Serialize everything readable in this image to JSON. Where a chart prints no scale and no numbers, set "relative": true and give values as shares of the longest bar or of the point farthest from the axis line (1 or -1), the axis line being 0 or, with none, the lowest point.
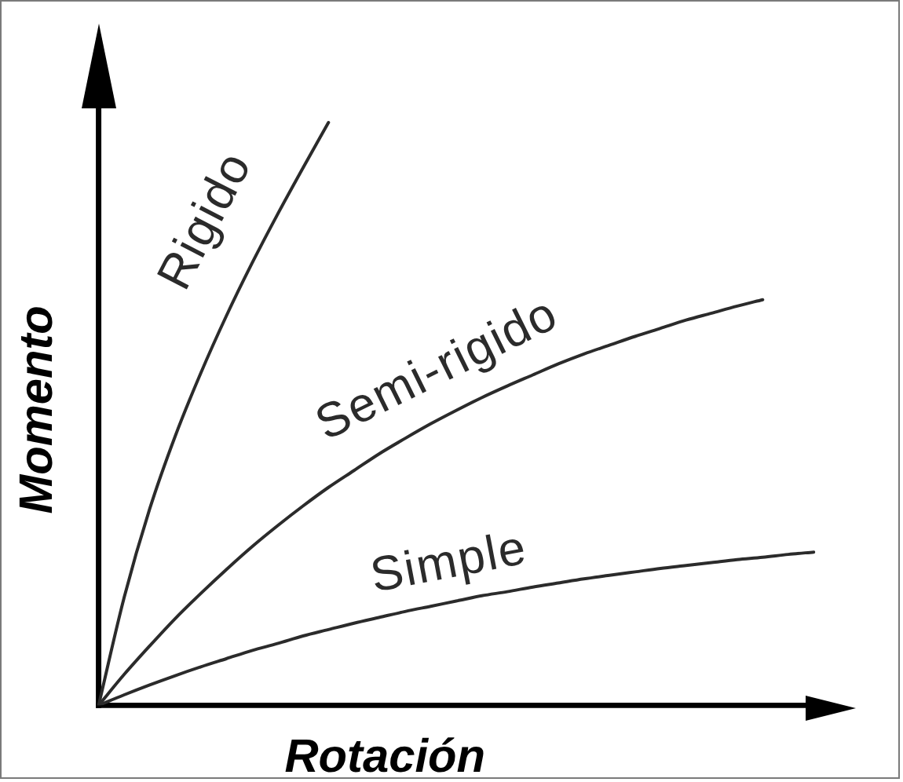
{
  "chart_data": {
    "type": "line",
    "relative": true,
    "xlabel": "Rotación",
    "ylabel": "Momento",
    "marker": "none",
    "line_style": "solid",
    "categories": [
      null,
      null,
      null,
      null,
      null,
      null,
      null,
      null,
      null,
      null,
      null,
      null,
      null,
      null,
      null,
      null,
      null,
      null,
      null,
      null,
      null,
      null,
      null,
      null,
      null,
      null,
      null,
      null,
      null
    ],
    "series": [
      {
        "name": "Rigido",
        "color": "#2b2b2b",
        "values": [
          0,
          0.185,
          0.337,
          0.462,
          0.57,
          0.668,
          0.758,
          0.842,
          0.922,
          1,
          null,
          null,
          null,
          null,
          null,
          null,
          null,
          null,
          null,
          null,
          null,
          null,
          null,
          null,
          null,
          null,
          null,
          null,
          null
        ]
      },
      {
        "name": "Semi-rigido",
        "color": "#2b2b2b",
        "values": [
          0,
          0.053,
          0.102,
          0.149,
          0.192,
          0.233,
          0.272,
          0.308,
          0.342,
          0.374,
          0.403,
          0.432,
          0.458,
          0.483,
          0.506,
          0.528,
          0.548,
          0.567,
          0.586,
          0.603,
          0.618,
          0.633,
          0.647,
          0.661,
          0.673,
          0.685,
          0.696,
          null,
          null
        ]
      },
      {
        "name": "Simple",
        "color": "#2b2b2b",
        "values": [
          0,
          0.018,
          0.035,
          0.051,
          0.066,
          0.08,
          0.094,
          0.106,
          0.119,
          0.13,
          0.141,
          0.151,
          0.161,
          0.17,
          0.179,
          0.188,
          0.195,
          0.203,
          0.21,
          0.217,
          0.223,
          0.229,
          0.235,
          0.24,
          0.245,
          0.25,
          0.254,
          0.259,
          0.263
        ]
      }
    ]
  }
}
